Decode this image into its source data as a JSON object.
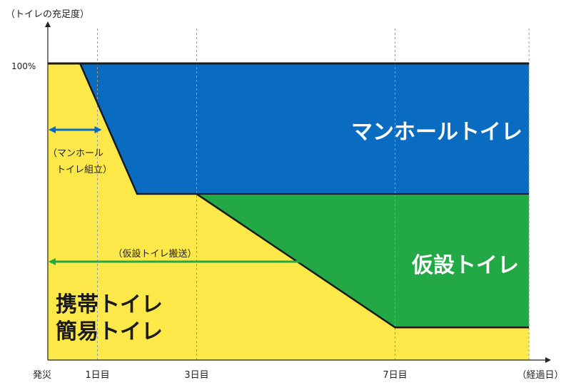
{
  "chart_data": {
    "type": "area",
    "title": "",
    "ylabel": "（トイレの充足度）",
    "xlabel": "（経過日）",
    "y_tick_label": "100%",
    "x_tick_labels": [
      "発災",
      "1日目",
      "3日目",
      "7日目"
    ],
    "x_tick_days": [
      0,
      1,
      3,
      7
    ],
    "xlim": [
      0,
      9.7
    ],
    "ylim": [
      0,
      100
    ],
    "grid": "vertical dashed at 1日目, 3日目, 7日目",
    "series": [
      {
        "name": "携帯トイレ\n簡易トイレ",
        "name_lines": [
          "携帯トイレ",
          "簡易トイレ"
        ],
        "color": "#fde84a",
        "points": [
          [
            0,
            100
          ],
          [
            0.65,
            100
          ],
          [
            1.8,
            56
          ],
          [
            3,
            56
          ],
          [
            7,
            11
          ],
          [
            9.7,
            11
          ]
        ]
      },
      {
        "name": "仮設トイレ",
        "color": "#22a845",
        "points": [
          [
            3,
            56
          ],
          [
            9.7,
            56
          ],
          [
            9.7,
            11
          ],
          [
            7,
            11
          ]
        ]
      },
      {
        "name": "マンホールトイレ",
        "color": "#0a6cc0",
        "points": [
          [
            0.65,
            100
          ],
          [
            9.7,
            100
          ],
          [
            9.7,
            56
          ],
          [
            1.8,
            56
          ]
        ]
      }
    ],
    "annotations": [
      {
        "text": "（マンホール",
        "text2": "トイレ組立）",
        "arrow_from_day": 0,
        "arrow_to_day": 1,
        "arrow_color": "#0a6cc0"
      },
      {
        "text": "（仮設トイレ搬送）",
        "arrow_from_day": 0,
        "arrow_to_day": 5,
        "arrow_color": "#22a845"
      }
    ]
  }
}
